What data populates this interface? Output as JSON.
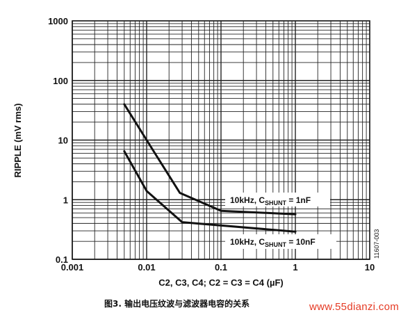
{
  "chart_data": {
    "type": "line",
    "title": "",
    "xlabel": "C2, C3, C4; C2 = C3 = C4 (µF)",
    "ylabel": "RIPPLE (mV rms)",
    "xscale": "log",
    "yscale": "log",
    "xlim": [
      0.001,
      10
    ],
    "ylim": [
      0.1,
      1000
    ],
    "x_tick_labels": [
      "0.001",
      "0.01",
      "0.1",
      "1",
      "10"
    ],
    "y_tick_labels": [
      "0.1",
      "1",
      "10",
      "100",
      "1000"
    ],
    "grid": true,
    "series": [
      {
        "name": "10kHz, C_SHUNT = 1nF",
        "label_main": "10kHz, C",
        "label_sub": "SHUNT",
        "label_tail": " = 1nF",
        "x": [
          0.005,
          0.01,
          0.028,
          0.1,
          1
        ],
        "y": [
          40,
          10,
          1.3,
          0.65,
          0.57
        ]
      },
      {
        "name": "10kHz, C_SHUNT = 10nF",
        "label_main": "10kHz, C",
        "label_sub": "SHUNT",
        "label_tail": " = 10nF",
        "x": [
          0.005,
          0.01,
          0.03,
          1
        ],
        "y": [
          6.5,
          1.4,
          0.42,
          0.29
        ]
      }
    ],
    "figure_code": "11607-003"
  },
  "caption": "图3. 输出电压纹波与滤波器电容的关系",
  "watermark": "www.55dianzi.com",
  "colors": {
    "line": "#111111",
    "grid": "#222222",
    "watermark": "#e53a24"
  }
}
